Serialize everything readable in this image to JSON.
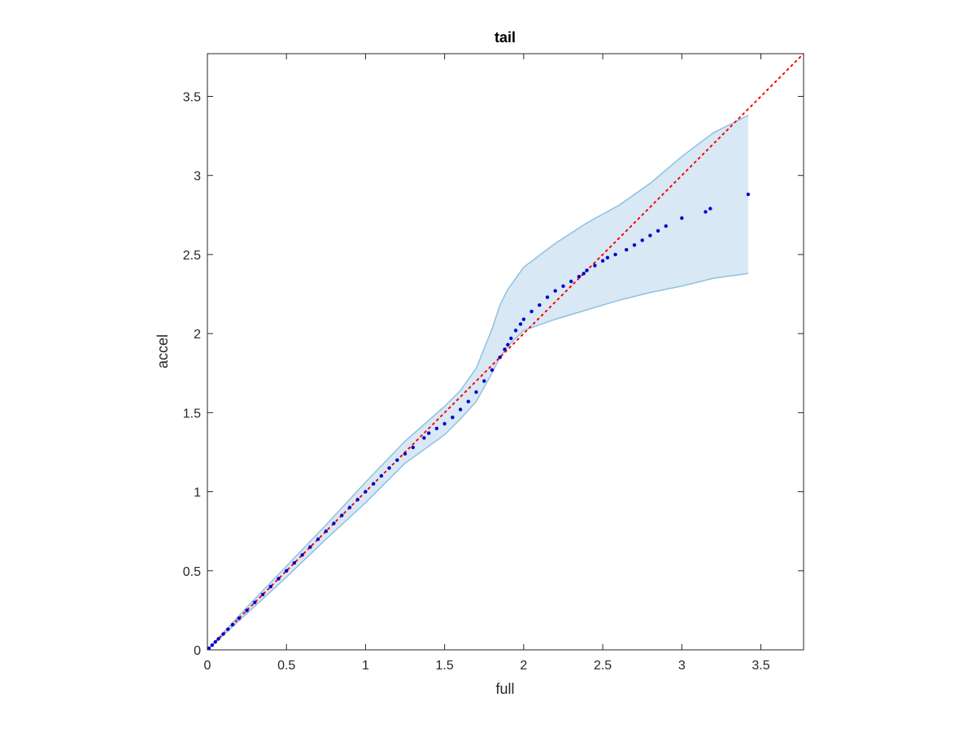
{
  "chart_data": {
    "type": "scatter",
    "title": "tail",
    "xlabel": "full",
    "ylabel": "accel",
    "xlim": [
      0,
      3.77
    ],
    "ylim": [
      0,
      3.77
    ],
    "xticks": [
      0,
      0.5,
      1,
      1.5,
      2,
      2.5,
      3,
      3.5
    ],
    "yticks": [
      0,
      0.5,
      1,
      1.5,
      2,
      2.5,
      3,
      3.5
    ],
    "xtick_labels": [
      "0",
      "0.5",
      "1",
      "1.5",
      "2",
      "2.5",
      "3",
      "3.5"
    ],
    "ytick_labels": [
      "0",
      "0.5",
      "1",
      "1.5",
      "2",
      "2.5",
      "3",
      "3.5"
    ],
    "grid": false,
    "reference_line": {
      "style": "dotted",
      "color": "#ff0000",
      "x": [
        0,
        3.77
      ],
      "y": [
        0,
        3.77
      ]
    },
    "band": {
      "color": "#d8e8f4",
      "edge_color": "#8fc1e0",
      "x": [
        0,
        0.25,
        0.5,
        0.75,
        1.0,
        1.25,
        1.5,
        1.6,
        1.7,
        1.8,
        1.85,
        1.9,
        2.0,
        2.2,
        2.4,
        2.6,
        2.8,
        3.0,
        3.2,
        3.42
      ],
      "upper": [
        0,
        0.27,
        0.53,
        0.79,
        1.06,
        1.32,
        1.54,
        1.64,
        1.78,
        2.03,
        2.18,
        2.28,
        2.42,
        2.57,
        2.7,
        2.81,
        2.95,
        3.12,
        3.27,
        3.38
      ],
      "lower": [
        0,
        0.23,
        0.46,
        0.7,
        0.93,
        1.18,
        1.36,
        1.46,
        1.57,
        1.75,
        1.85,
        1.92,
        2.02,
        2.09,
        2.15,
        2.21,
        2.26,
        2.3,
        2.35,
        2.38
      ]
    },
    "series": [
      {
        "color": "#0000cc",
        "x": [
          0.01,
          0.03,
          0.05,
          0.07,
          0.1,
          0.13,
          0.16,
          0.2,
          0.25,
          0.3,
          0.35,
          0.4,
          0.45,
          0.5,
          0.55,
          0.6,
          0.65,
          0.7,
          0.75,
          0.8,
          0.85,
          0.9,
          0.95,
          1.0,
          1.05,
          1.1,
          1.15,
          1.2,
          1.25,
          1.3,
          1.37,
          1.4,
          1.45,
          1.5,
          1.55,
          1.6,
          1.65,
          1.7,
          1.75,
          1.8,
          1.85,
          1.88,
          1.9,
          1.92,
          1.95,
          1.98,
          2.0,
          2.05,
          2.1,
          2.15,
          2.2,
          2.25,
          2.3,
          2.35,
          2.38,
          2.4,
          2.45,
          2.5,
          2.53,
          2.58,
          2.65,
          2.7,
          2.75,
          2.8,
          2.85,
          2.9,
          3.0,
          3.15,
          3.18,
          3.42
        ],
        "y": [
          0.01,
          0.03,
          0.05,
          0.07,
          0.1,
          0.13,
          0.16,
          0.2,
          0.25,
          0.3,
          0.35,
          0.4,
          0.45,
          0.5,
          0.55,
          0.6,
          0.65,
          0.7,
          0.75,
          0.8,
          0.85,
          0.9,
          0.95,
          1.0,
          1.05,
          1.1,
          1.15,
          1.2,
          1.24,
          1.28,
          1.34,
          1.37,
          1.4,
          1.43,
          1.47,
          1.52,
          1.57,
          1.63,
          1.7,
          1.77,
          1.85,
          1.9,
          1.93,
          1.97,
          2.02,
          2.06,
          2.09,
          2.14,
          2.18,
          2.23,
          2.27,
          2.3,
          2.33,
          2.36,
          2.38,
          2.4,
          2.43,
          2.46,
          2.48,
          2.5,
          2.53,
          2.56,
          2.59,
          2.62,
          2.65,
          2.68,
          2.73,
          2.77,
          2.79,
          2.88
        ]
      }
    ]
  }
}
